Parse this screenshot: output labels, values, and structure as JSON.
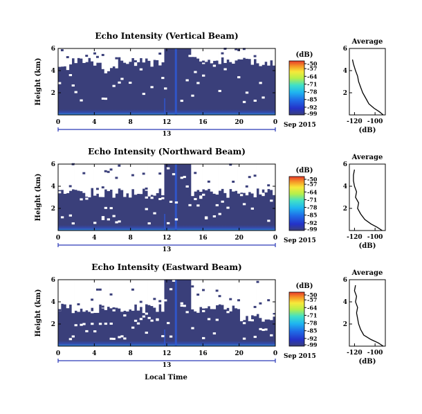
{
  "panels": [
    {
      "title": "Echo Intensity (Vertical Beam)",
      "ylabel": "Height (km)",
      "avg_title": "Average",
      "avg_xlabel": "(dB)",
      "cb_unit": "(dB)"
    },
    {
      "title": "Echo Intensity (Northward Beam)",
      "ylabel": "Height (km)",
      "avg_title": "Average",
      "avg_xlabel": "(dB)",
      "cb_unit": "(dB)"
    },
    {
      "title": "Echo Intensity (Eastward Beam)",
      "ylabel": "Height (km)",
      "avg_title": "Average",
      "avg_xlabel": "(dB)",
      "cb_unit": "(dB)"
    }
  ],
  "date_label": "Sep 2015",
  "day_label": "13",
  "xlabel": "Local Time",
  "colors": {
    "background_echo": "#3a3f7a",
    "weak_echo": "#2f59d6",
    "strong_echo": "#2aa0e6",
    "missing": "#ffffff",
    "day_line": "#2a39b8"
  },
  "chart_data": [
    {
      "type": "heatmap",
      "title": "Echo Intensity (Vertical Beam)",
      "ylabel": "Height (km)",
      "x_ticks": [
        "0",
        "4",
        "8",
        "12",
        "16",
        "20",
        "0"
      ],
      "x_range_hours": [
        0,
        24
      ],
      "y_ticks": [
        "2",
        "4",
        "6"
      ],
      "y_range_km": [
        0,
        6
      ],
      "colorbar": {
        "unit": "(dB)",
        "ticks": [
          "-50",
          "-57",
          "-64",
          "-71",
          "-78",
          "-85",
          "-92",
          "-99"
        ],
        "range": [
          -99,
          -50
        ]
      },
      "description_of_cells": "mostly -95 to -99 dB; white (missing) above about 5 km; weak enhancement below 0.5 km; vertical streak near 13 LT",
      "average_profile": {
        "title": "Average",
        "xlabel": "(dB)",
        "x_ticks": [
          "-120",
          "-100"
        ],
        "xlim": [
          -125,
          -90
        ],
        "y_ticks": [
          "2",
          "4",
          "6"
        ],
        "ylim": [
          0,
          6
        ],
        "height_km": [
          0.0,
          0.3,
          0.6,
          1.0,
          1.5,
          2.0,
          2.5,
          3.0,
          3.5,
          4.0,
          4.3,
          4.6,
          5.0
        ],
        "db": [
          -92,
          -96,
          -101,
          -106,
          -109,
          -112,
          -114,
          -116,
          -117,
          -119,
          -120,
          -121,
          -122
        ]
      }
    },
    {
      "type": "heatmap",
      "title": "Echo Intensity (Northward Beam)",
      "ylabel": "Height (km)",
      "x_ticks": [
        "0",
        "4",
        "8",
        "12",
        "16",
        "20",
        "0"
      ],
      "x_range_hours": [
        0,
        24
      ],
      "y_ticks": [
        "2",
        "4",
        "6"
      ],
      "y_range_km": [
        0,
        6
      ],
      "colorbar": {
        "unit": "(dB)",
        "ticks": [
          "-50",
          "-57",
          "-64",
          "-71",
          "-78",
          "-85",
          "-92",
          "-99"
        ],
        "range": [
          -99,
          -50
        ]
      },
      "description_of_cells": "mostly -95 to -99 dB; white (missing) between about 3.5 and 6 km; weak enhancement below 0.5 km; vertical streak near 13 LT",
      "average_profile": {
        "title": "Average",
        "xlabel": "(dB)",
        "x_ticks": [
          "-120",
          "-100"
        ],
        "xlim": [
          -125,
          -90
        ],
        "y_ticks": [
          "2",
          "4",
          "6"
        ],
        "ylim": [
          0,
          6
        ],
        "height_km": [
          0.0,
          0.3,
          0.6,
          1.0,
          1.5,
          2.0,
          2.5,
          3.0,
          3.5,
          4.0,
          4.5,
          5.0,
          5.5
        ],
        "db": [
          -93,
          -98,
          -104,
          -110,
          -114,
          -117,
          -116,
          -119,
          -118,
          -120,
          -121,
          -121,
          -120
        ]
      }
    },
    {
      "type": "heatmap",
      "title": "Echo Intensity (Eastward Beam)",
      "ylabel": "Height (km)",
      "xlabel": "Local Time",
      "x_ticks": [
        "0",
        "4",
        "8",
        "12",
        "16",
        "20",
        "0"
      ],
      "x_range_hours": [
        0,
        24
      ],
      "y_ticks": [
        "2",
        "4",
        "6"
      ],
      "y_range_km": [
        0,
        6
      ],
      "colorbar": {
        "unit": "(dB)",
        "ticks": [
          "-50",
          "-57",
          "-64",
          "-71",
          "-78",
          "-85",
          "-92",
          "-99"
        ],
        "range": [
          -99,
          -50
        ]
      },
      "description_of_cells": "mostly -95 to -99 dB; white (missing) above about 3.5 km; weak enhancement below 0.5 km; vertical streak near 13 LT",
      "average_profile": {
        "title": "Average",
        "xlabel": "(dB)",
        "x_ticks": [
          "-120",
          "-100"
        ],
        "xlim": [
          -125,
          -90
        ],
        "y_ticks": [
          "2",
          "4",
          "6"
        ],
        "ylim": [
          0,
          6
        ],
        "height_km": [
          0.0,
          0.3,
          0.6,
          1.0,
          1.5,
          2.0,
          2.5,
          3.0,
          3.5,
          4.0,
          4.5,
          5.0,
          5.5
        ],
        "db": [
          -92,
          -97,
          -104,
          -111,
          -114,
          -116,
          -117,
          -118,
          -117,
          -119,
          -118,
          -120,
          -119
        ]
      }
    }
  ]
}
